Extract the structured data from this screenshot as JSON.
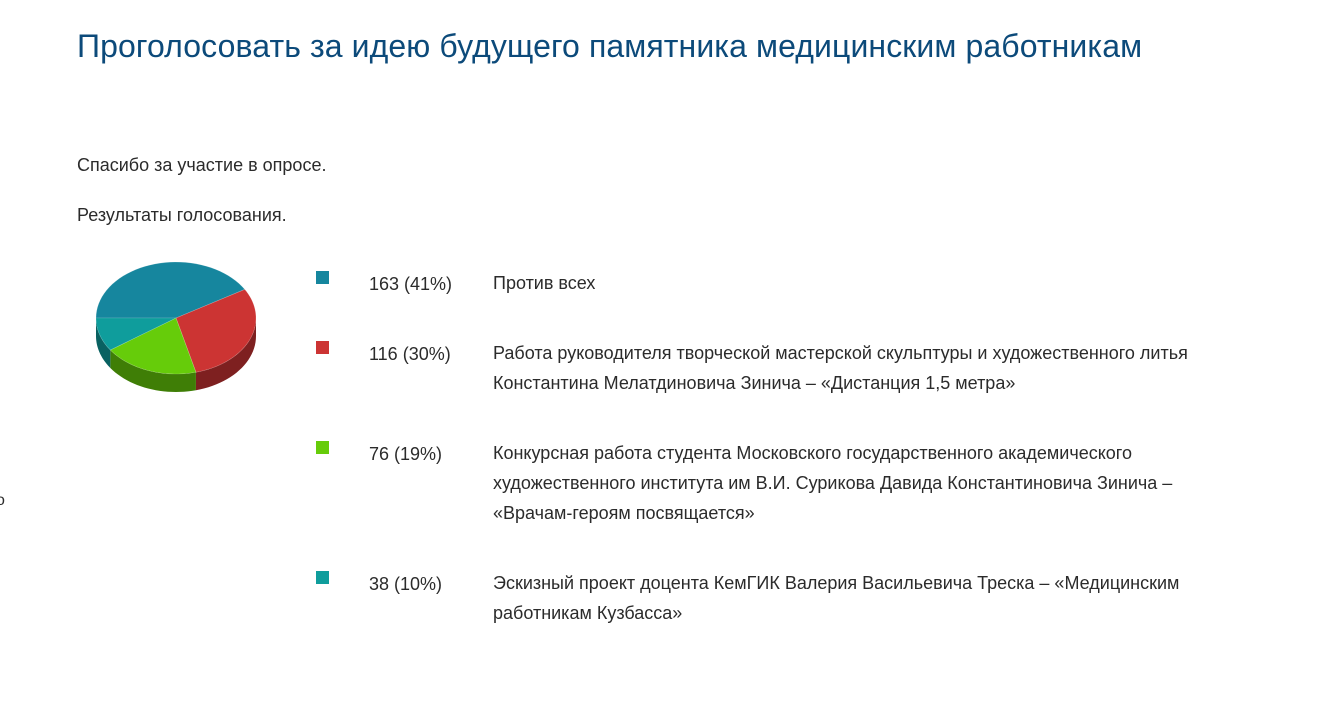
{
  "poll": {
    "title": "Проголосовать за идею будущего памятника медицинским работникам",
    "thanks": "Спасибо за участие в опросе.",
    "results_heading": "Результаты голосования.",
    "edge_glyph": "о"
  },
  "chart_data": {
    "type": "pie",
    "values": [
      163,
      116,
      76,
      38
    ],
    "percents": [
      41,
      30,
      19,
      10
    ],
    "colors": [
      "#16869e",
      "#cc3433",
      "#66cc0a",
      "#0f9d9c"
    ]
  },
  "options": [
    {
      "count": "163 (41%)",
      "label": "Против всех",
      "color": "#16869e"
    },
    {
      "count": "116 (30%)",
      "label": "Работа руководителя творческой мастерской скульптуры и художественного литья Константина Мелатдиновича Зинича – «Дистанция 1,5 метра»",
      "color": "#cc3433"
    },
    {
      "count": "76 (19%)",
      "label": "Конкурсная работа студента Московского государственного академического художественного института им В.И. Сурикова Давида Константиновича Зинича – «Врачам-героям посвящается»",
      "color": "#66cc0a"
    },
    {
      "count": "38 (10%)",
      "label": "Эскизный проект доцента КемГИК Валерия Васильевича Треска – «Медицинским работникам Кузбасса»",
      "color": "#0f9d9c"
    }
  ]
}
